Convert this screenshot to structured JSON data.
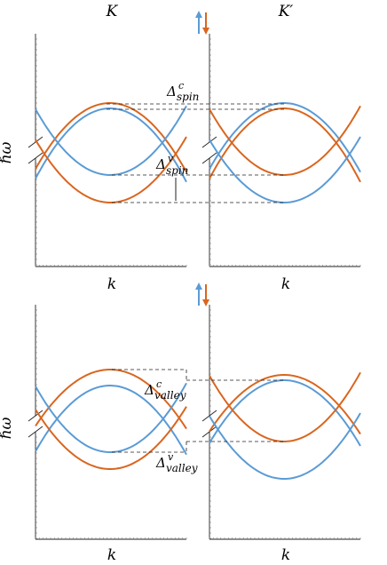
{
  "colors": {
    "spin_up": "#5b9bd5",
    "spin_down": "#d9661f"
  },
  "labels": {
    "valley_left": "K",
    "valley_right": "K′",
    "energy_axis": "ℏω",
    "momentum_axis": "k",
    "delta_spin_c": "Δ",
    "delta_spin_c_sup": "c",
    "delta_spin_c_sub": "spin",
    "delta_spin_v": "Δ",
    "delta_spin_v_sup": "v",
    "delta_spin_v_sub": "spin",
    "delta_valley_c": "Δ",
    "delta_valley_c_sup": "c",
    "delta_valley_c_sub": "valley",
    "delta_valley_v": "Δ",
    "delta_valley_v_sup": "v",
    "delta_valley_v_sub": "valley"
  },
  "icons": [
    "spin-up-arrow-icon",
    "spin-down-arrow-icon"
  ]
}
